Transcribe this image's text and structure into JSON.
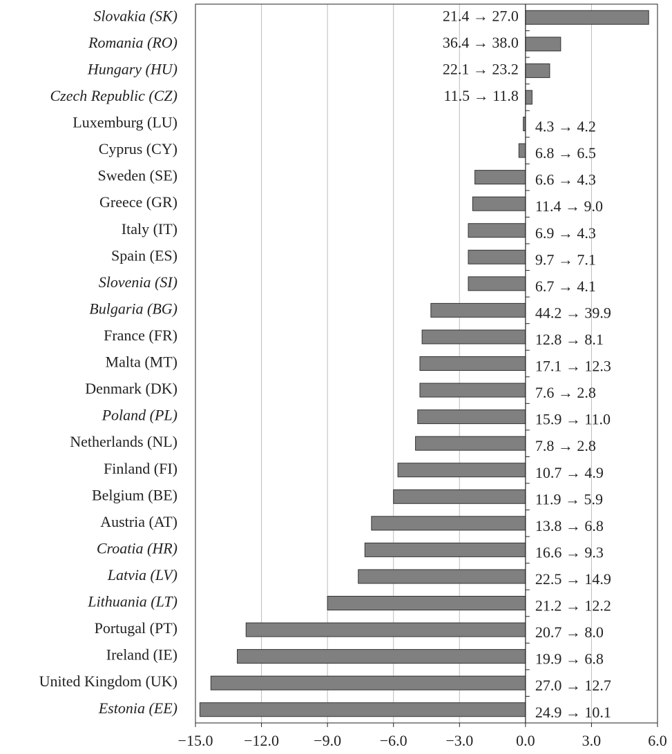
{
  "chart_data": {
    "type": "bar",
    "orientation": "horizontal",
    "categories": [
      "Slovakia (SK)",
      "Romania (RO)",
      "Hungary (HU)",
      "Czech Republic (CZ)",
      "Luxemburg (LU)",
      "Cyprus (CY)",
      "Sweden (SE)",
      "Greece (GR)",
      "Italy (IT)",
      "Spain (ES)",
      "Slovenia (SI)",
      "Bulgaria (BG)",
      "France (FR)",
      "Malta (MT)",
      "Denmark (DK)",
      "Poland (PL)",
      "Netherlands (NL)",
      "Finland (FI)",
      "Belgium (BE)",
      "Austria (AT)",
      "Croatia (HR)",
      "Latvia (LV)",
      "Lithuania (LT)",
      "Portugal (PT)",
      "Ireland (IE)",
      "United Kingdom (UK)",
      "Estonia (EE)"
    ],
    "italic": [
      true,
      true,
      true,
      true,
      false,
      false,
      false,
      false,
      false,
      false,
      true,
      true,
      false,
      false,
      false,
      true,
      false,
      false,
      false,
      false,
      true,
      true,
      true,
      false,
      false,
      false,
      true
    ],
    "values": [
      5.6,
      1.6,
      1.1,
      0.3,
      -0.1,
      -0.3,
      -2.3,
      -2.4,
      -2.6,
      -2.6,
      -2.6,
      -4.3,
      -4.7,
      -4.8,
      -4.8,
      -4.9,
      -5.0,
      -5.8,
      -6.0,
      -7.0,
      -7.3,
      -7.6,
      -9.0,
      -12.7,
      -13.1,
      -14.3,
      -14.8
    ],
    "annotations": [
      "21.4 → 27.0",
      "36.4 → 38.0",
      "22.1 → 23.2",
      "11.5 → 11.8",
      "4.3 → 4.2",
      "6.8 → 6.5",
      "6.6 → 4.3",
      "11.4 → 9.0",
      "6.9 → 4.3",
      "9.7 → 7.1",
      "6.7 → 4.1",
      "44.2 → 39.9",
      "12.8 → 8.1",
      "17.1 → 12.3",
      "7.6 → 2.8",
      "15.9 → 11.0",
      "7.8 → 2.8",
      "10.7 → 4.9",
      "11.9 → 5.9",
      "13.8 → 6.8",
      "16.6 → 9.3",
      "22.5 → 14.9",
      "21.2 → 12.2",
      "20.7 → 8.0",
      "19.9 → 6.8",
      "27.0 → 12.7",
      "24.9 → 10.1"
    ],
    "color": "#808080",
    "xlim": [
      -15,
      6
    ],
    "xticks": [
      {
        "value": -15,
        "label": "−15.0"
      },
      {
        "value": -12,
        "label": "−12.0"
      },
      {
        "value": -9,
        "label": "−9.0"
      },
      {
        "value": -6,
        "label": "−6.0"
      },
      {
        "value": -3,
        "label": "−3.0"
      },
      {
        "value": 0,
        "label": "0.0"
      },
      {
        "value": 3,
        "label": "3.0"
      },
      {
        "value": 6,
        "label": "6.0"
      }
    ],
    "grid": true
  }
}
